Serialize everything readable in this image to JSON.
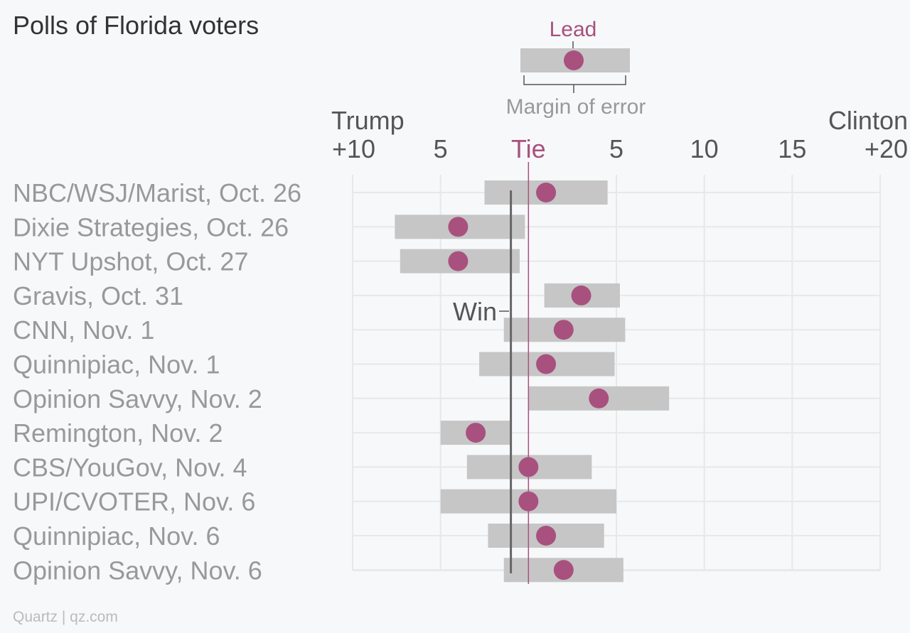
{
  "title": "Polls of Florida voters",
  "credit": "Quartz | qz.com",
  "legend": {
    "lead_label": "Lead",
    "margin_label": "Margin of error",
    "win_label": "Win"
  },
  "axis": {
    "left_candidate": "Trump",
    "right_candidate": "Clinton"
  },
  "colors": {
    "accent": "#a8517e",
    "bar": "#c6c6c6",
    "win_line": "#666666",
    "grid": "#e8e8e8",
    "background": "#f7f8fa"
  },
  "chart_data": {
    "type": "dot-range",
    "title": "Polls of Florida voters",
    "x_range": [
      -10,
      20
    ],
    "x_ticks": [
      {
        "value": -10,
        "label": "+10"
      },
      {
        "value": -5,
        "label": "5"
      },
      {
        "value": 0,
        "label": "Tie"
      },
      {
        "value": 5,
        "label": "5"
      },
      {
        "value": 10,
        "label": "10"
      },
      {
        "value": 15,
        "label": "15"
      },
      {
        "value": 20,
        "label": "+20"
      }
    ],
    "win_threshold": -1,
    "series": [
      {
        "poll": "NBC/WSJ/Marist, Oct. 26",
        "lead": 1,
        "low": -2.5,
        "high": 4.5
      },
      {
        "poll": "Dixie Strategies, Oct. 26",
        "lead": -4,
        "low": -7.6,
        "high": -0.2
      },
      {
        "poll": "NYT Upshot,  Oct. 27",
        "lead": -4,
        "low": -7.3,
        "high": -0.5
      },
      {
        "poll": "Gravis, Oct. 31",
        "lead": 3,
        "low": 0.9,
        "high": 5.2
      },
      {
        "poll": "CNN, Nov. 1",
        "lead": 2,
        "low": -1.4,
        "high": 5.5
      },
      {
        "poll": "Quinnipiac, Nov. 1",
        "lead": 1,
        "low": -2.8,
        "high": 4.9
      },
      {
        "poll": "Opinion Savvy, Nov. 2",
        "lead": 4,
        "low": 0,
        "high": 8
      },
      {
        "poll": "Remington, Nov. 2",
        "lead": -3,
        "low": -5,
        "high": -1
      },
      {
        "poll": "CBS/YouGov, Nov. 4",
        "lead": 0,
        "low": -3.5,
        "high": 3.6
      },
      {
        "poll": "UPI/CVOTER, Nov. 6",
        "lead": 0,
        "low": -5,
        "high": 5
      },
      {
        "poll": "Quinnipiac, Nov. 6",
        "lead": 1,
        "low": -2.3,
        "high": 4.3
      },
      {
        "poll": "Opinion Savvy, Nov. 6",
        "lead": 2,
        "low": -1.4,
        "high": 5.4
      }
    ]
  }
}
